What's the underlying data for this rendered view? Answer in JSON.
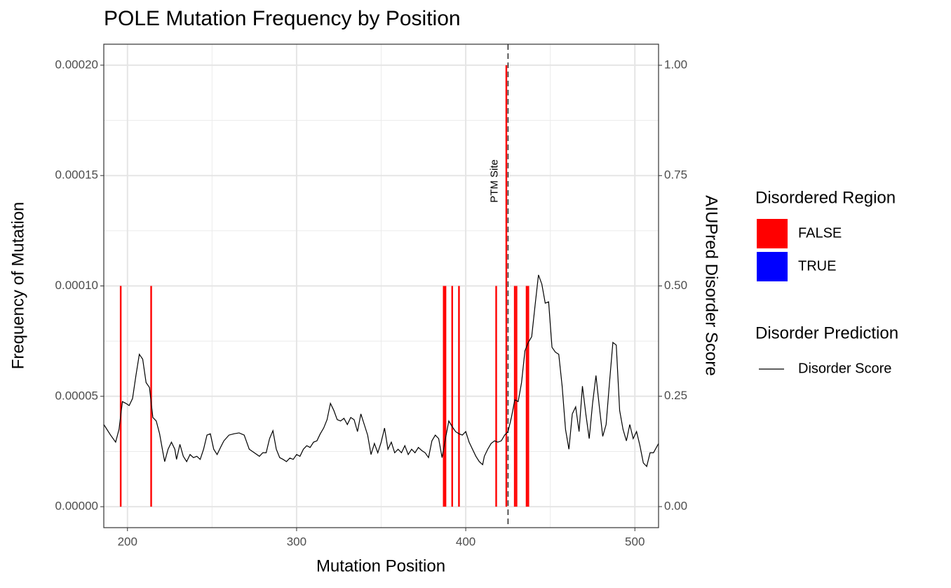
{
  "chart_data": {
    "type": "bar",
    "title": "POLE Mutation Frequency by Position",
    "x_label": "Mutation Position",
    "y_label": "Frequency of Mutation",
    "y2_label": "AIUPred Disorder Score",
    "xlim": [
      186,
      514
    ],
    "xticks": [
      200,
      300,
      400,
      500
    ],
    "minor_xticks": [
      250,
      350,
      450
    ],
    "ylim": [
      -9.5e-06,
      0.0002095
    ],
    "yticks": [
      {
        "value": 0,
        "label": "0.00000"
      },
      {
        "value": 5e-05,
        "label": "0.00005"
      },
      {
        "value": 0.0001,
        "label": "0.00010"
      },
      {
        "value": 0.00015,
        "label": "0.00015"
      },
      {
        "value": 0.0002,
        "label": "0.00020"
      }
    ],
    "minor_yticks": [
      2.5e-05,
      7.5e-05,
      0.000125,
      0.000175
    ],
    "y2lim": [
      -0.0477,
      1.0477
    ],
    "y2ticks": [
      {
        "value": 0,
        "label": "0.00"
      },
      {
        "value": 0.25,
        "label": "0.25"
      },
      {
        "value": 0.5,
        "label": "0.50"
      },
      {
        "value": 0.75,
        "label": "0.75"
      },
      {
        "value": 1,
        "label": "1.00"
      }
    ],
    "grid": true,
    "legend": "right",
    "legend_titles": [
      "Disordered Region",
      "Disorder Prediction"
    ],
    "vline": {
      "x": 425,
      "label": "PTM Site"
    },
    "series": [
      {
        "name": "FALSE",
        "color": "#ff0000",
        "legend_group": 0,
        "x": [
          196,
          214,
          387,
          388,
          392,
          396,
          418,
          424,
          429,
          430,
          436,
          437
        ],
        "values": [
          0.0001,
          0.0001,
          0.0001,
          0.0001,
          0.0001,
          0.0001,
          0.0001,
          0.0002,
          0.0001,
          0.0001,
          0.0001,
          0.0001
        ]
      },
      {
        "name": "TRUE",
        "color": "#0000ff",
        "legend_group": 0,
        "x": [],
        "values": []
      },
      {
        "name": "Disorder Score",
        "color": "#000000",
        "legend_group": 1,
        "type": "line",
        "axis": "y2",
        "x": [
          186,
          190,
          193,
          195,
          197,
          199,
          201,
          203,
          205,
          207,
          209,
          211,
          213,
          215,
          217,
          219,
          221,
          222,
          224,
          226,
          228,
          229,
          231,
          233,
          235,
          237,
          239,
          241,
          243,
          245,
          247,
          249,
          251,
          253,
          255,
          257,
          260,
          263,
          266,
          269,
          272,
          275,
          278,
          280,
          282,
          284,
          286,
          288,
          290,
          292,
          294,
          296,
          298,
          300,
          302,
          304,
          306,
          308,
          310,
          312,
          314,
          316,
          318,
          320,
          322,
          324,
          326,
          328,
          330,
          332,
          334,
          336,
          338,
          340,
          342,
          344,
          346,
          348,
          350,
          352,
          354,
          356,
          358,
          360,
          362,
          364,
          366,
          368,
          370,
          372,
          374,
          376,
          378,
          380,
          382,
          384,
          386,
          388,
          390,
          392,
          394,
          396,
          398,
          400,
          402,
          404,
          406,
          408,
          410,
          411,
          413,
          415,
          417,
          419,
          421,
          423,
          425,
          427,
          429,
          431,
          433,
          435,
          437,
          439,
          441,
          443,
          445,
          447,
          449,
          451,
          453,
          455,
          457,
          459,
          461,
          463,
          465,
          467,
          469,
          471,
          473,
          475,
          477,
          479,
          481,
          483,
          485,
          487,
          489,
          491,
          493,
          495,
          497,
          499,
          501,
          503,
          505,
          507,
          509,
          511,
          514
        ],
        "values": [
          0.186,
          0.162,
          0.146,
          0.175,
          0.238,
          0.234,
          0.229,
          0.245,
          0.297,
          0.345,
          0.334,
          0.281,
          0.27,
          0.202,
          0.194,
          0.165,
          0.122,
          0.102,
          0.13,
          0.146,
          0.13,
          0.107,
          0.141,
          0.114,
          0.102,
          0.118,
          0.111,
          0.114,
          0.107,
          0.13,
          0.162,
          0.165,
          0.13,
          0.118,
          0.134,
          0.149,
          0.162,
          0.165,
          0.167,
          0.162,
          0.13,
          0.122,
          0.114,
          0.122,
          0.122,
          0.154,
          0.172,
          0.13,
          0.111,
          0.107,
          0.102,
          0.11,
          0.107,
          0.118,
          0.114,
          0.13,
          0.138,
          0.134,
          0.146,
          0.149,
          0.165,
          0.178,
          0.197,
          0.234,
          0.218,
          0.197,
          0.194,
          0.2,
          0.186,
          0.202,
          0.197,
          0.17,
          0.21,
          0.186,
          0.162,
          0.118,
          0.143,
          0.122,
          0.146,
          0.178,
          0.13,
          0.146,
          0.122,
          0.13,
          0.122,
          0.138,
          0.118,
          0.13,
          0.122,
          0.134,
          0.127,
          0.122,
          0.111,
          0.149,
          0.162,
          0.154,
          0.111,
          0.154,
          0.194,
          0.181,
          0.17,
          0.165,
          0.162,
          0.17,
          0.146,
          0.13,
          0.114,
          0.102,
          0.095,
          0.114,
          0.13,
          0.143,
          0.149,
          0.146,
          0.149,
          0.162,
          0.17,
          0.202,
          0.242,
          0.238,
          0.281,
          0.353,
          0.372,
          0.385,
          0.456,
          0.525,
          0.504,
          0.461,
          0.464,
          0.361,
          0.35,
          0.345,
          0.273,
          0.175,
          0.13,
          0.21,
          0.226,
          0.17,
          0.273,
          0.21,
          0.154,
          0.234,
          0.297,
          0.226,
          0.159,
          0.186,
          0.281,
          0.372,
          0.366,
          0.218,
          0.175,
          0.149,
          0.186,
          0.154,
          0.17,
          0.138,
          0.099,
          0.091,
          0.122,
          0.122,
          0.143
        ]
      }
    ]
  }
}
